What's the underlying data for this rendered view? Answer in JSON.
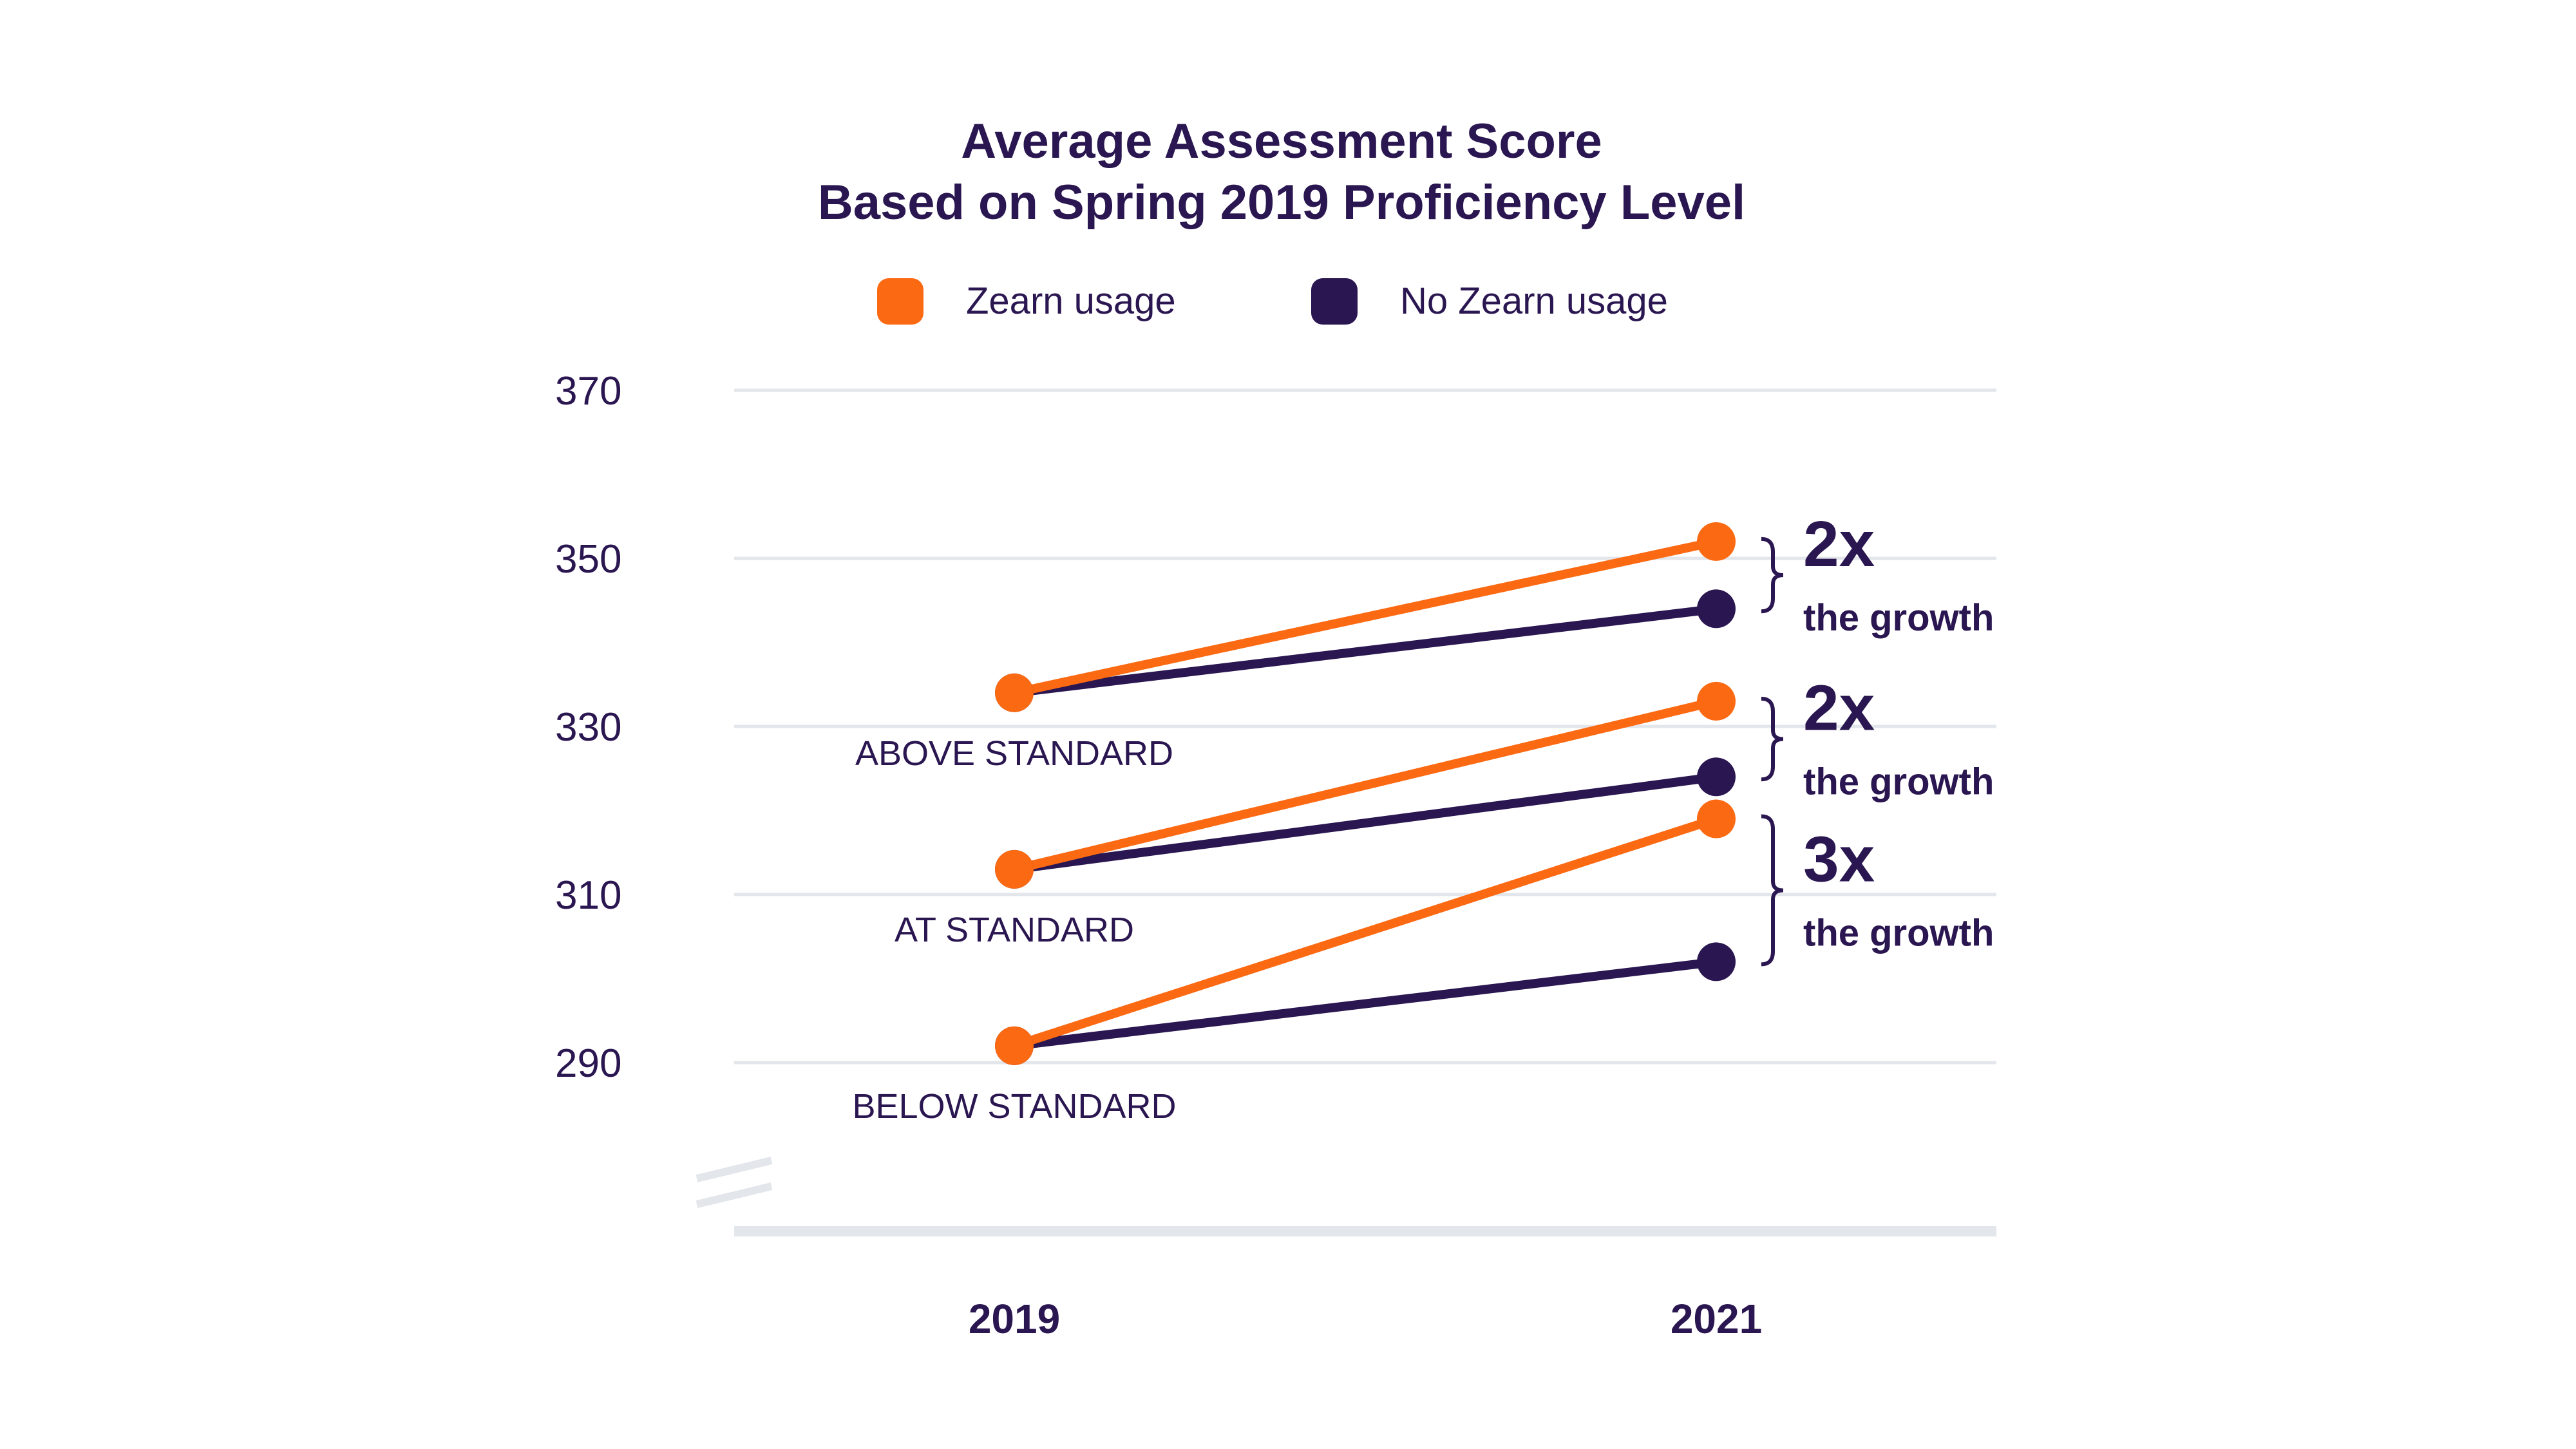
{
  "chart_data": {
    "type": "line",
    "title": [
      "Average Assessment Score",
      "Based on Spring 2019 Proficiency Level"
    ],
    "x": [
      "2019",
      "2021"
    ],
    "ylim": [
      270,
      370
    ],
    "y_ticks": [
      290,
      310,
      330,
      350,
      370
    ],
    "axis_break": true,
    "grid": true,
    "legend": {
      "position": "top-center",
      "items": [
        {
          "name": "Zearn usage",
          "color": "#fb6a13"
        },
        {
          "name": "No Zearn usage",
          "color": "#2a1650"
        }
      ]
    },
    "groups": [
      {
        "label": "ABOVE STANDARD",
        "series": [
          {
            "name": "Zearn usage",
            "values": [
              334,
              352
            ]
          },
          {
            "name": "No Zearn usage",
            "values": [
              334,
              344
            ]
          }
        ],
        "annotation": {
          "multiplier": "2x",
          "text": "the growth"
        }
      },
      {
        "label": "AT STANDARD",
        "series": [
          {
            "name": "Zearn usage",
            "values": [
              313,
              333
            ]
          },
          {
            "name": "No Zearn usage",
            "values": [
              313,
              324
            ]
          }
        ],
        "annotation": {
          "multiplier": "2x",
          "text": "the growth"
        }
      },
      {
        "label": "BELOW STANDARD",
        "series": [
          {
            "name": "Zearn usage",
            "values": [
              292,
              319
            ]
          },
          {
            "name": "No Zearn usage",
            "values": [
              292,
              302
            ]
          }
        ],
        "annotation": {
          "multiplier": "3x",
          "text": "the growth"
        }
      }
    ],
    "colors": {
      "Zearn usage": "#fb6a13",
      "No Zearn usage": "#2a1650"
    }
  }
}
